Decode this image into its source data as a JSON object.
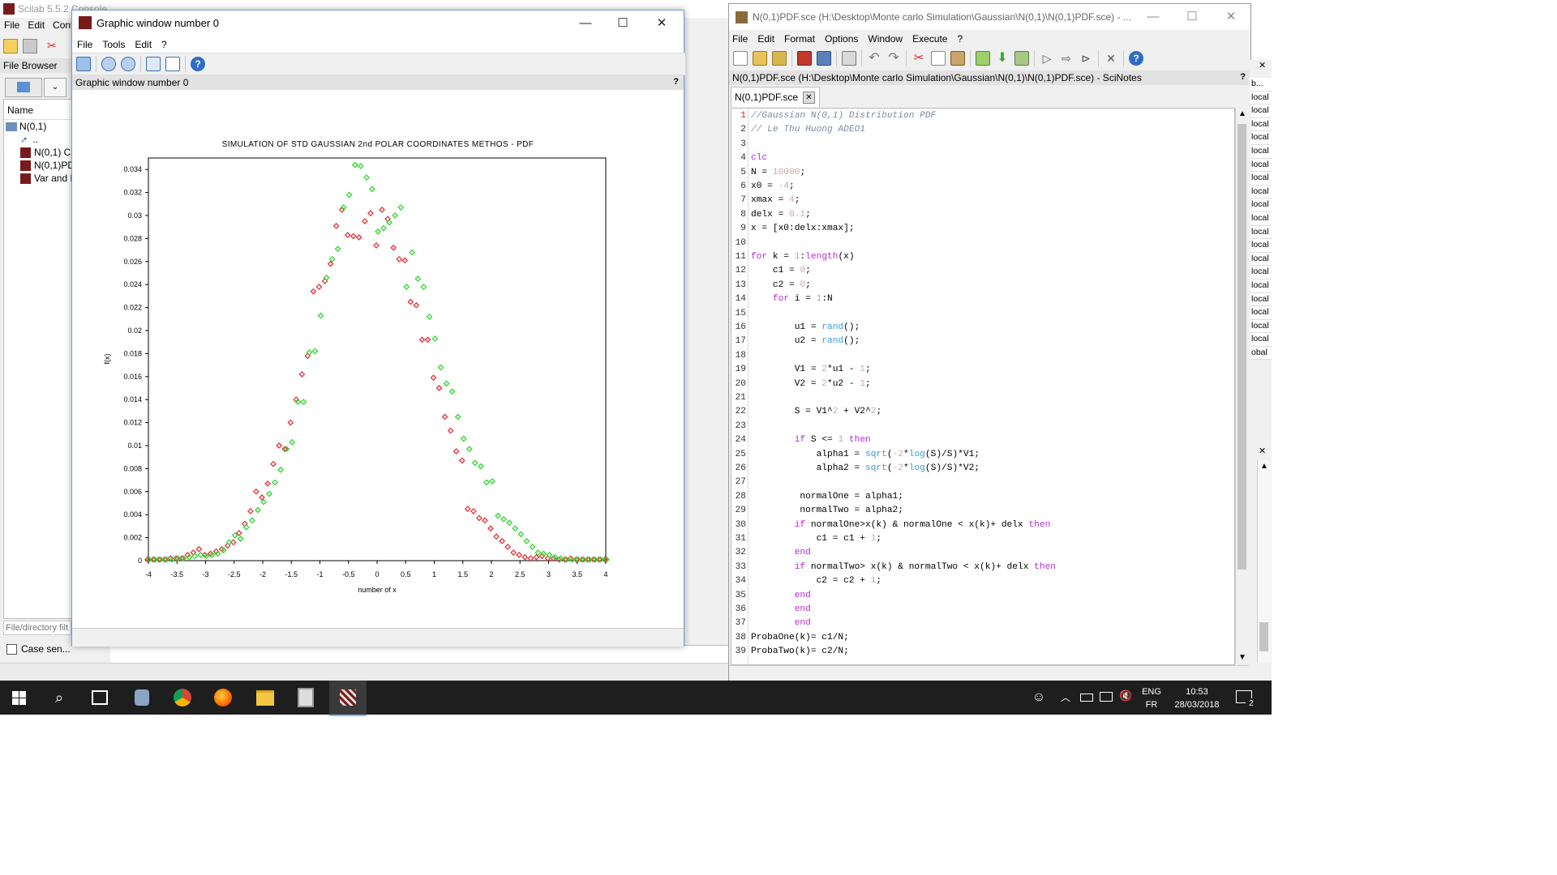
{
  "console": {
    "title": "Scilab 5.5.2 Console",
    "menu": [
      "File",
      "Edit",
      "Cont"
    ],
    "file_browser_label": "File Browser",
    "name_header": "Name",
    "tree": [
      {
        "label": "N(0,1)"
      },
      {
        "label": ".."
      },
      {
        "label": "N(0,1) Cl"
      },
      {
        "label": "N(0,1)PD"
      },
      {
        "label": "Var and E"
      }
    ],
    "filter_placeholder": "File/directory filt",
    "case_sensitive_label": "Case sen..."
  },
  "graphic": {
    "title": "Graphic window number 0",
    "menu": [
      "File",
      "Tools",
      "Edit",
      "?"
    ],
    "subtitle": "Graphic window number 0",
    "help_mark": "?"
  },
  "chart_data": {
    "type": "scatter",
    "title": "SIMULATION OF STD GAUSSIAN 2nd POLAR COORDINATES METHOS - PDF",
    "xlabel": "number of x",
    "ylabel": "f(x)",
    "xlim": [
      -4,
      4
    ],
    "ylim": [
      0,
      0.035
    ],
    "grid": false,
    "xticks": [
      "-4",
      "-3.5",
      "-3",
      "-2.5",
      "-2",
      "-1.5",
      "-1",
      "-0.5",
      "0",
      "0.5",
      "1",
      "1.5",
      "2",
      "2.5",
      "3",
      "3.5",
      "4"
    ],
    "yticks": [
      "0",
      "0.002",
      "0.004",
      "0.006",
      "0.008",
      "0.01",
      "0.012",
      "0.014",
      "0.016",
      "0.018",
      "0.02",
      "0.022",
      "0.024",
      "0.026",
      "0.028",
      "0.03",
      "0.032",
      "0.034"
    ],
    "x": [
      -4,
      -3.9,
      -3.8,
      -3.7,
      -3.6,
      -3.5,
      -3.4,
      -3.3,
      -3.2,
      -3.1,
      -3,
      -2.9,
      -2.8,
      -2.7,
      -2.6,
      -2.5,
      -2.4,
      -2.3,
      -2.2,
      -2.1,
      -2,
      -1.9,
      -1.8,
      -1.7,
      -1.6,
      -1.5,
      -1.4,
      -1.3,
      -1.2,
      -1.1,
      -1,
      -0.9,
      -0.8,
      -0.7,
      -0.6,
      -0.5,
      -0.4,
      -0.3,
      -0.2,
      -0.1,
      0,
      0.1,
      0.2,
      0.3,
      0.4,
      0.5,
      0.6,
      0.7,
      0.8,
      0.9,
      1,
      1.1,
      1.2,
      1.3,
      1.4,
      1.5,
      1.6,
      1.7,
      1.8,
      1.9,
      2,
      2.1,
      2.2,
      2.3,
      2.4,
      2.5,
      2.6,
      2.7,
      2.8,
      2.9,
      3,
      3.1,
      3.2,
      3.3,
      3.4,
      3.5,
      3.6,
      3.7,
      3.8,
      3.9,
      4
    ],
    "series": [
      {
        "color": "#e8333a",
        "values": [
          0.0001,
          0.0001,
          0.0001,
          0.0001,
          0.0002,
          0.0002,
          0.0002,
          0.0005,
          0.0007,
          0.001,
          0.0005,
          0.0006,
          0.0008,
          0.001,
          0.0013,
          0.0016,
          0.0024,
          0.0032,
          0.0043,
          0.006,
          0.0055,
          0.0067,
          0.0084,
          0.01,
          0.0097,
          0.012,
          0.014,
          0.0162,
          0.0178,
          0.0234,
          0.0238,
          0.0243,
          0.0258,
          0.0291,
          0.0305,
          0.0283,
          0.0282,
          0.0281,
          0.0295,
          0.0302,
          0.0274,
          0.0305,
          0.0297,
          0.0272,
          0.0262,
          0.0261,
          0.0225,
          0.0222,
          0.0192,
          0.0192,
          0.0159,
          0.015,
          0.0125,
          0.0113,
          0.0095,
          0.0087,
          0.0045,
          0.0043,
          0.0037,
          0.0035,
          0.0028,
          0.0021,
          0.0017,
          0.0012,
          0.0007,
          0.0005,
          0.0003,
          0.0002,
          0.0003,
          0.0004,
          0.0002,
          0.0002,
          0.0001,
          0.0001,
          0.0002,
          0.0001,
          0.0001,
          0.0001,
          0.0001,
          0.0001,
          0.0001
        ]
      },
      {
        "color": "#2fd82f",
        "values": [
          0.0001,
          0.0001,
          0.0001,
          0.0001,
          0.0001,
          0.0002,
          0.0002,
          0.0003,
          0.0004,
          0.0005,
          0.0004,
          0.0005,
          0.0006,
          0.0009,
          0.0016,
          0.0022,
          0.0019,
          0.0029,
          0.0035,
          0.0044,
          0.0051,
          0.0058,
          0.0068,
          0.0079,
          0.0097,
          0.0103,
          0.0138,
          0.0138,
          0.0181,
          0.0182,
          0.0213,
          0.0246,
          0.0262,
          0.0271,
          0.0307,
          0.0318,
          0.0344,
          0.0343,
          0.0333,
          0.0323,
          0.0286,
          0.0289,
          0.0294,
          0.03,
          0.0307,
          0.0238,
          0.0268,
          0.0245,
          0.0238,
          0.0212,
          0.0193,
          0.0168,
          0.0154,
          0.0147,
          0.0125,
          0.0106,
          0.0097,
          0.0085,
          0.0082,
          0.0068,
          0.0069,
          0.0039,
          0.0036,
          0.0033,
          0.0028,
          0.0023,
          0.0017,
          0.0012,
          0.0007,
          0.0006,
          0.0005,
          0.0003,
          0.0002,
          0.0001,
          0.0001,
          0.0001,
          0.0001,
          0.0001,
          0.0001,
          0.0001,
          0.0001
        ]
      }
    ]
  },
  "scinotes": {
    "title": "N(0,1)PDF.sce (H:\\Desktop\\Monte carlo Simulation\\Gaussian\\N(0,1)\\N(0,1)PDF.sce) - ...",
    "menu": [
      "File",
      "Edit",
      "Format",
      "Options",
      "Window",
      "Execute",
      "?"
    ],
    "path_bar": "N(0,1)PDF.sce (H:\\Desktop\\Monte carlo Simulation\\Gaussian\\N(0,1)\\N(0,1)PDF.sce) - SciNotes",
    "help_mark": "?",
    "tab_label": "N(0,1)PDF.sce",
    "lines": [
      "//Gaussian N(0,1) Distribution PDF",
      "// Le Thu Huong ADEO1",
      "",
      "clc",
      "N = 10000;",
      "x0 = -4;",
      "xmax = 4;",
      "delx = 0.1;",
      "x = [x0:delx:xmax];",
      "",
      "for k = 1:length(x)",
      "    c1 = 0;",
      "    c2 = 0;",
      "    for i = 1:N",
      "",
      "        u1 = rand();",
      "        u2 = rand();",
      "",
      "        V1 = 2*u1 - 1;",
      "        V2 = 2*u2 - 1;",
      "",
      "        S = V1^2 + V2^2;",
      "",
      "        if S <= 1 then",
      "            alpha1 = sqrt(-2*log(S)/S)*V1;",
      "            alpha2 = sqrt(-2*log(S)/S)*V2;",
      "",
      "         normalOne = alpha1;",
      "         normalTwo = alpha2;",
      "        if normalOne>x(k) & normalOne < x(k)+ delx then",
      "            c1 = c1 + 1;",
      "        end",
      "        if normalTwo> x(k) & normalTwo < x(k)+ delx then",
      "            c2 = c2 + 1;",
      "        end",
      "        end",
      "        end",
      "ProbaOne(k)= c1/N;",
      "ProbaTwo(k)= c2/N;"
    ],
    "side_items": [
      "b...",
      "local",
      "local",
      "local",
      "local",
      "local",
      "local",
      "local",
      "local",
      "local",
      "local",
      "local",
      "local",
      "local",
      "local",
      "local",
      "local",
      "local",
      "local",
      "local",
      "obal"
    ]
  },
  "taskbar": {
    "lang_top": "ENG",
    "lang_bottom": "FR",
    "time": "10:53",
    "date": "28/03/2018",
    "notif_count": "2"
  }
}
